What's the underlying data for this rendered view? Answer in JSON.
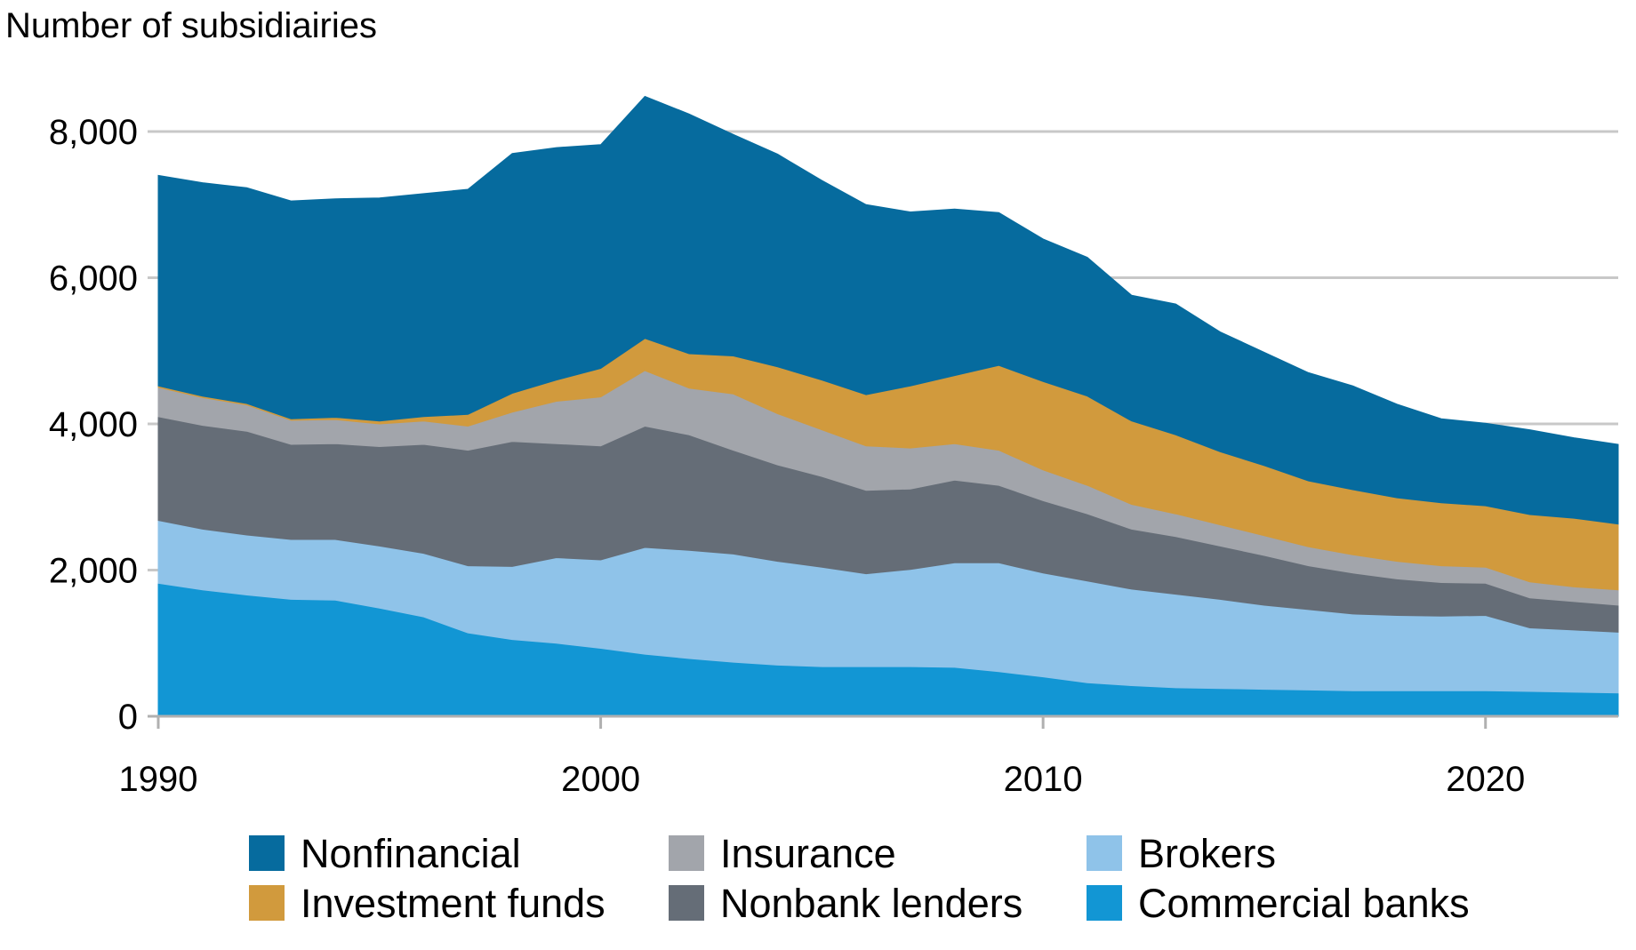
{
  "chart_data": {
    "type": "area",
    "stacked": true,
    "ylabel": "Number of subsidiairies",
    "xlabel": "",
    "title": "",
    "xlim": [
      1990,
      2023
    ],
    "ylim": [
      0,
      8000
    ],
    "y_ticks": [
      {
        "value": 0,
        "label": "0"
      },
      {
        "value": 2000,
        "label": "2,000"
      },
      {
        "value": 4000,
        "label": "4,000"
      },
      {
        "value": 6000,
        "label": "6,000"
      },
      {
        "value": 8000,
        "label": "8,000"
      }
    ],
    "x_ticks": [
      {
        "value": 1990,
        "label": "1990"
      },
      {
        "value": 2000,
        "label": "2000"
      },
      {
        "value": 2010,
        "label": "2010"
      },
      {
        "value": 2020,
        "label": "2020"
      }
    ],
    "grid": "horizontal",
    "legend_position": "bottom",
    "x": [
      1990,
      1991,
      1992,
      1993,
      1994,
      1995,
      1996,
      1997,
      1998,
      1999,
      2000,
      2001,
      2002,
      2003,
      2004,
      2005,
      2006,
      2007,
      2008,
      2009,
      2010,
      2011,
      2012,
      2013,
      2014,
      2015,
      2016,
      2017,
      2018,
      2019,
      2020,
      2021,
      2022,
      2023
    ],
    "series": [
      {
        "name": "Commercial banks",
        "color": "#1296d4",
        "values": [
          1820,
          1730,
          1660,
          1600,
          1590,
          1480,
          1360,
          1140,
          1050,
          1000,
          930,
          850,
          790,
          740,
          700,
          680,
          680,
          680,
          670,
          610,
          540,
          460,
          420,
          390,
          380,
          370,
          360,
          350,
          350,
          350,
          350,
          340,
          330,
          320
        ]
      },
      {
        "name": "Brokers",
        "color": "#8fc3e9",
        "values": [
          860,
          830,
          820,
          820,
          830,
          850,
          870,
          920,
          1000,
          1170,
          1210,
          1460,
          1480,
          1480,
          1420,
          1360,
          1270,
          1330,
          1430,
          1490,
          1420,
          1390,
          1320,
          1280,
          1220,
          1150,
          1100,
          1050,
          1030,
          1020,
          1030,
          870,
          850,
          830
        ]
      },
      {
        "name": "Nonbank lenders",
        "color": "#656d77",
        "values": [
          1420,
          1420,
          1420,
          1300,
          1310,
          1360,
          1490,
          1580,
          1710,
          1560,
          1560,
          1660,
          1580,
          1420,
          1320,
          1240,
          1140,
          1100,
          1130,
          1060,
          990,
          920,
          820,
          790,
          730,
          680,
          600,
          560,
          500,
          460,
          440,
          410,
          390,
          370
        ]
      },
      {
        "name": "Insurance",
        "color": "#a2a5ab",
        "values": [
          400,
          380,
          360,
          330,
          330,
          310,
          320,
          330,
          400,
          580,
          670,
          760,
          640,
          770,
          700,
          640,
          610,
          560,
          500,
          480,
          420,
          390,
          340,
          310,
          290,
          270,
          260,
          250,
          240,
          230,
          220,
          220,
          200,
          210
        ]
      },
      {
        "name": "Investment funds",
        "color": "#d19a3d",
        "values": [
          20,
          20,
          20,
          20,
          30,
          40,
          60,
          160,
          260,
          290,
          390,
          440,
          470,
          520,
          640,
          680,
          700,
          850,
          930,
          1160,
          1210,
          1220,
          1140,
          1080,
          1000,
          960,
          900,
          890,
          870,
          860,
          840,
          920,
          940,
          900
        ]
      },
      {
        "name": "Nonfinancial",
        "color": "#066b9e",
        "values": [
          2880,
          2920,
          2950,
          2980,
          2990,
          3050,
          3050,
          3080,
          3280,
          3180,
          3060,
          3310,
          3280,
          3030,
          2910,
          2730,
          2600,
          2380,
          2280,
          2090,
          1950,
          1900,
          1720,
          1790,
          1640,
          1550,
          1480,
          1420,
          1280,
          1150,
          1130,
          1160,
          1100,
          1090
        ]
      }
    ],
    "legend": [
      {
        "name": "Nonfinancial",
        "color": "#066b9e"
      },
      {
        "name": "Investment funds",
        "color": "#d19a3d"
      },
      {
        "name": "Insurance",
        "color": "#a2a5ab"
      },
      {
        "name": "Nonbank lenders",
        "color": "#656d77"
      },
      {
        "name": "Brokers",
        "color": "#8fc3e9"
      },
      {
        "name": "Commercial banks",
        "color": "#1296d4"
      }
    ]
  }
}
